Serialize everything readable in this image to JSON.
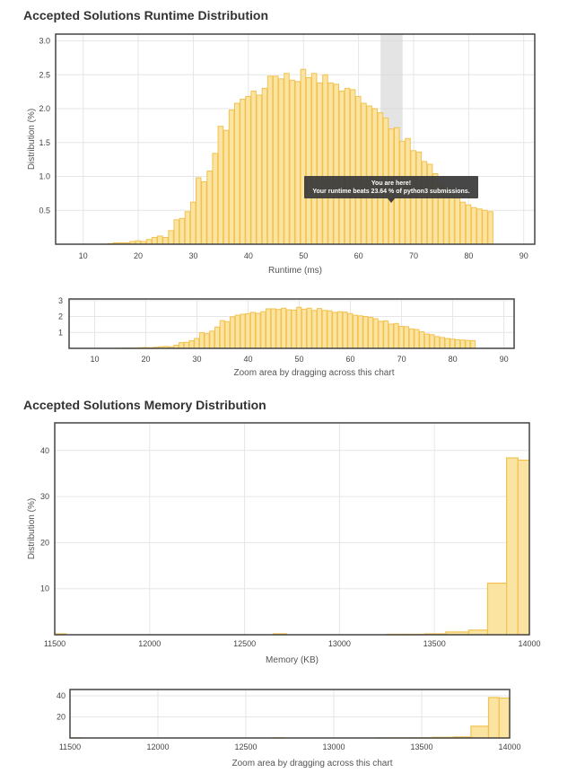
{
  "runtime_section": {
    "title": "Accepted Solutions Runtime Distribution"
  },
  "memory_section": {
    "title": "Accepted Solutions Memory Distribution"
  },
  "zoom_hint": "Zoom area by dragging across this chart",
  "tooltip": {
    "line1": "You are here!",
    "line2": "Your runtime beats 23.64 % of python3 submissions."
  },
  "colors": {
    "bar_fill": "#fbe3a1",
    "bar_stroke": "#f2c24f",
    "highlight": "#d9d9d9",
    "tooltip_bg": "#3d3d3d"
  },
  "chart_data": [
    {
      "id": "runtime-main",
      "type": "bar",
      "title": "Accepted Solutions Runtime Distribution",
      "xlabel": "Runtime (ms)",
      "ylabel": "Distribution (%)",
      "xlim": [
        5,
        92
      ],
      "ylim": [
        0,
        3.1
      ],
      "xticks": [
        10,
        20,
        30,
        40,
        50,
        60,
        70,
        80,
        90
      ],
      "yticks": [
        0.5,
        1.0,
        1.5,
        2.0,
        2.5,
        3.0
      ],
      "ytick_labels": [
        "0.5",
        "1.0",
        "1.5",
        "2.0",
        "2.5",
        "3.0"
      ],
      "highlight_range": [
        64,
        68
      ],
      "x": [
        10,
        11,
        12,
        13,
        14,
        15,
        16,
        17,
        18,
        19,
        20,
        21,
        22,
        23,
        24,
        25,
        26,
        27,
        28,
        29,
        30,
        31,
        32,
        33,
        34,
        35,
        36,
        37,
        38,
        39,
        40,
        41,
        42,
        43,
        44,
        45,
        46,
        47,
        48,
        49,
        50,
        51,
        52,
        53,
        54,
        55,
        56,
        57,
        58,
        59,
        60,
        61,
        62,
        63,
        64,
        65,
        66,
        67,
        68,
        69,
        70,
        71,
        72,
        73,
        74,
        75,
        76,
        77,
        78,
        79,
        80,
        81,
        82,
        83,
        84
      ],
      "values": [
        0,
        0,
        0,
        0,
        0,
        0.01,
        0.02,
        0.02,
        0.02,
        0.04,
        0.05,
        0.04,
        0.07,
        0.1,
        0.12,
        0.1,
        0.2,
        0.36,
        0.38,
        0.48,
        0.62,
        0.98,
        0.92,
        1.08,
        1.34,
        1.74,
        1.68,
        1.98,
        2.08,
        2.14,
        2.18,
        2.26,
        2.2,
        2.3,
        2.48,
        2.48,
        2.44,
        2.52,
        2.42,
        2.4,
        2.58,
        2.46,
        2.52,
        2.38,
        2.5,
        2.38,
        2.36,
        2.26,
        2.3,
        2.28,
        2.18,
        2.08,
        2.04,
        2.0,
        1.94,
        1.86,
        1.7,
        1.72,
        1.52,
        1.56,
        1.38,
        1.36,
        1.22,
        1.18,
        1.04,
        0.9,
        0.86,
        0.74,
        0.68,
        0.62,
        0.58,
        0.54,
        0.52,
        0.5,
        0.48
      ]
    },
    {
      "id": "runtime-zoom",
      "type": "bar",
      "xlim": [
        5,
        92
      ],
      "ylim": [
        0,
        3.1
      ],
      "xticks": [
        10,
        20,
        30,
        40,
        50,
        60,
        70,
        80,
        90
      ],
      "yticks": [
        1,
        2,
        3
      ],
      "ytick_labels": [
        "1",
        "2",
        "3"
      ],
      "source": "runtime-main"
    },
    {
      "id": "memory-main",
      "type": "bar",
      "title": "Accepted Solutions Memory Distribution",
      "xlabel": "Memory (KB)",
      "ylabel": "Distribution (%)",
      "xlim": [
        11500,
        14000
      ],
      "ylim": [
        0,
        46
      ],
      "xticks": [
        11500,
        12000,
        12500,
        13000,
        13500,
        14000
      ],
      "yticks": [
        10,
        20,
        30,
        40
      ],
      "ytick_labels": [
        "10",
        "20",
        "30",
        "40"
      ],
      "bins": [
        [
          11500,
          11560,
          0.2
        ],
        [
          12650,
          12720,
          0.2
        ],
        [
          13250,
          13350,
          0.1
        ],
        [
          13350,
          13450,
          0.1
        ],
        [
          13450,
          13560,
          0.2
        ],
        [
          13560,
          13680,
          0.6
        ],
        [
          13680,
          13780,
          1.0
        ],
        [
          13780,
          13880,
          11.2
        ],
        [
          13880,
          13940,
          38.4
        ],
        [
          13940,
          14000,
          37.9
        ]
      ]
    },
    {
      "id": "memory-zoom",
      "type": "bar",
      "xlim": [
        11500,
        14000
      ],
      "ylim": [
        0,
        46
      ],
      "xticks": [
        11500,
        12000,
        12500,
        13000,
        13500,
        14000
      ],
      "yticks": [
        20,
        40
      ],
      "ytick_labels": [
        "20",
        "40"
      ],
      "source": "memory-main"
    }
  ]
}
